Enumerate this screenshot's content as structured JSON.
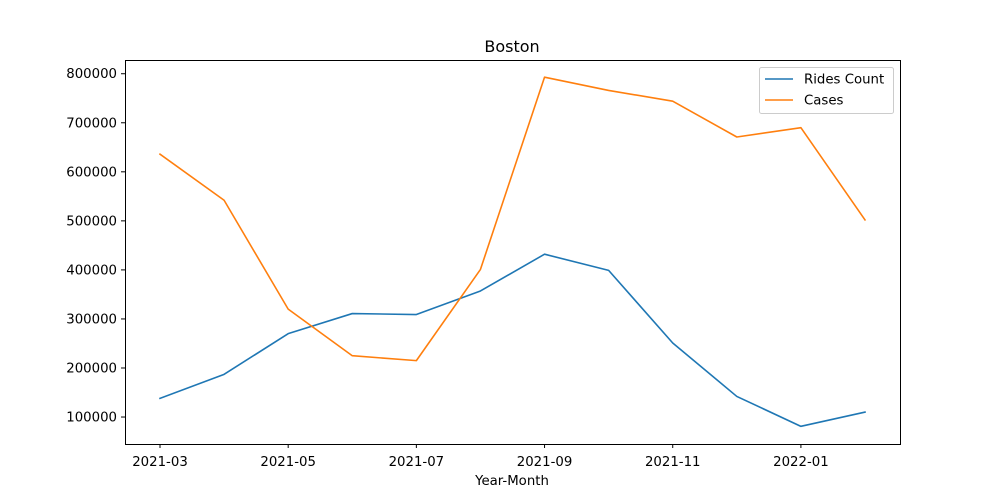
{
  "chart_data": {
    "type": "line",
    "title": "Boston",
    "xlabel": "Year-Month",
    "ylabel": "",
    "x": [
      "2021-03",
      "2021-04",
      "2021-05",
      "2021-06",
      "2021-07",
      "2021-08",
      "2021-09",
      "2021-10",
      "2021-11",
      "2021-12",
      "2022-01",
      "2022-02"
    ],
    "xticks": [
      "2021-03",
      "2021-05",
      "2021-07",
      "2021-09",
      "2021-11",
      "2022-01"
    ],
    "yticks": [
      100000,
      200000,
      300000,
      400000,
      500000,
      600000,
      700000,
      800000
    ],
    "ylim": [
      45000,
      828000
    ],
    "grid": false,
    "legend_position": "top-right",
    "series": [
      {
        "name": "Rides Count",
        "color": "#1f77b4",
        "values": [
          138000,
          187000,
          270000,
          311000,
          309000,
          357000,
          432000,
          399000,
          251000,
          142000,
          81000,
          110000
        ]
      },
      {
        "name": "Cases",
        "color": "#ff7f0e",
        "values": [
          636000,
          542000,
          320000,
          225000,
          215000,
          401000,
          793000,
          766000,
          744000,
          671000,
          690000,
          502000
        ]
      }
    ]
  }
}
